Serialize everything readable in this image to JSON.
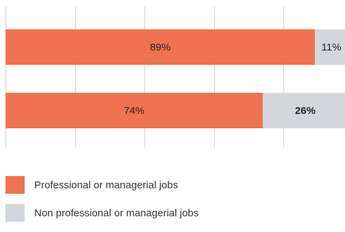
{
  "chart_data": {
    "type": "bar",
    "orientation": "horizontal",
    "stacked": true,
    "xlim": [
      0,
      100
    ],
    "grid": true,
    "legend_position": "bottom-left",
    "categories": [
      "",
      ""
    ],
    "series": [
      {
        "name": "Professional or managerial jobs",
        "color": "#ef7350",
        "values": [
          89,
          74
        ],
        "labels": [
          "89%",
          "74%"
        ]
      },
      {
        "name": "Non professional or managerial jobs",
        "color": "#d3d7db",
        "values": [
          11,
          26
        ],
        "labels": [
          "11%",
          "26%"
        ]
      }
    ]
  }
}
